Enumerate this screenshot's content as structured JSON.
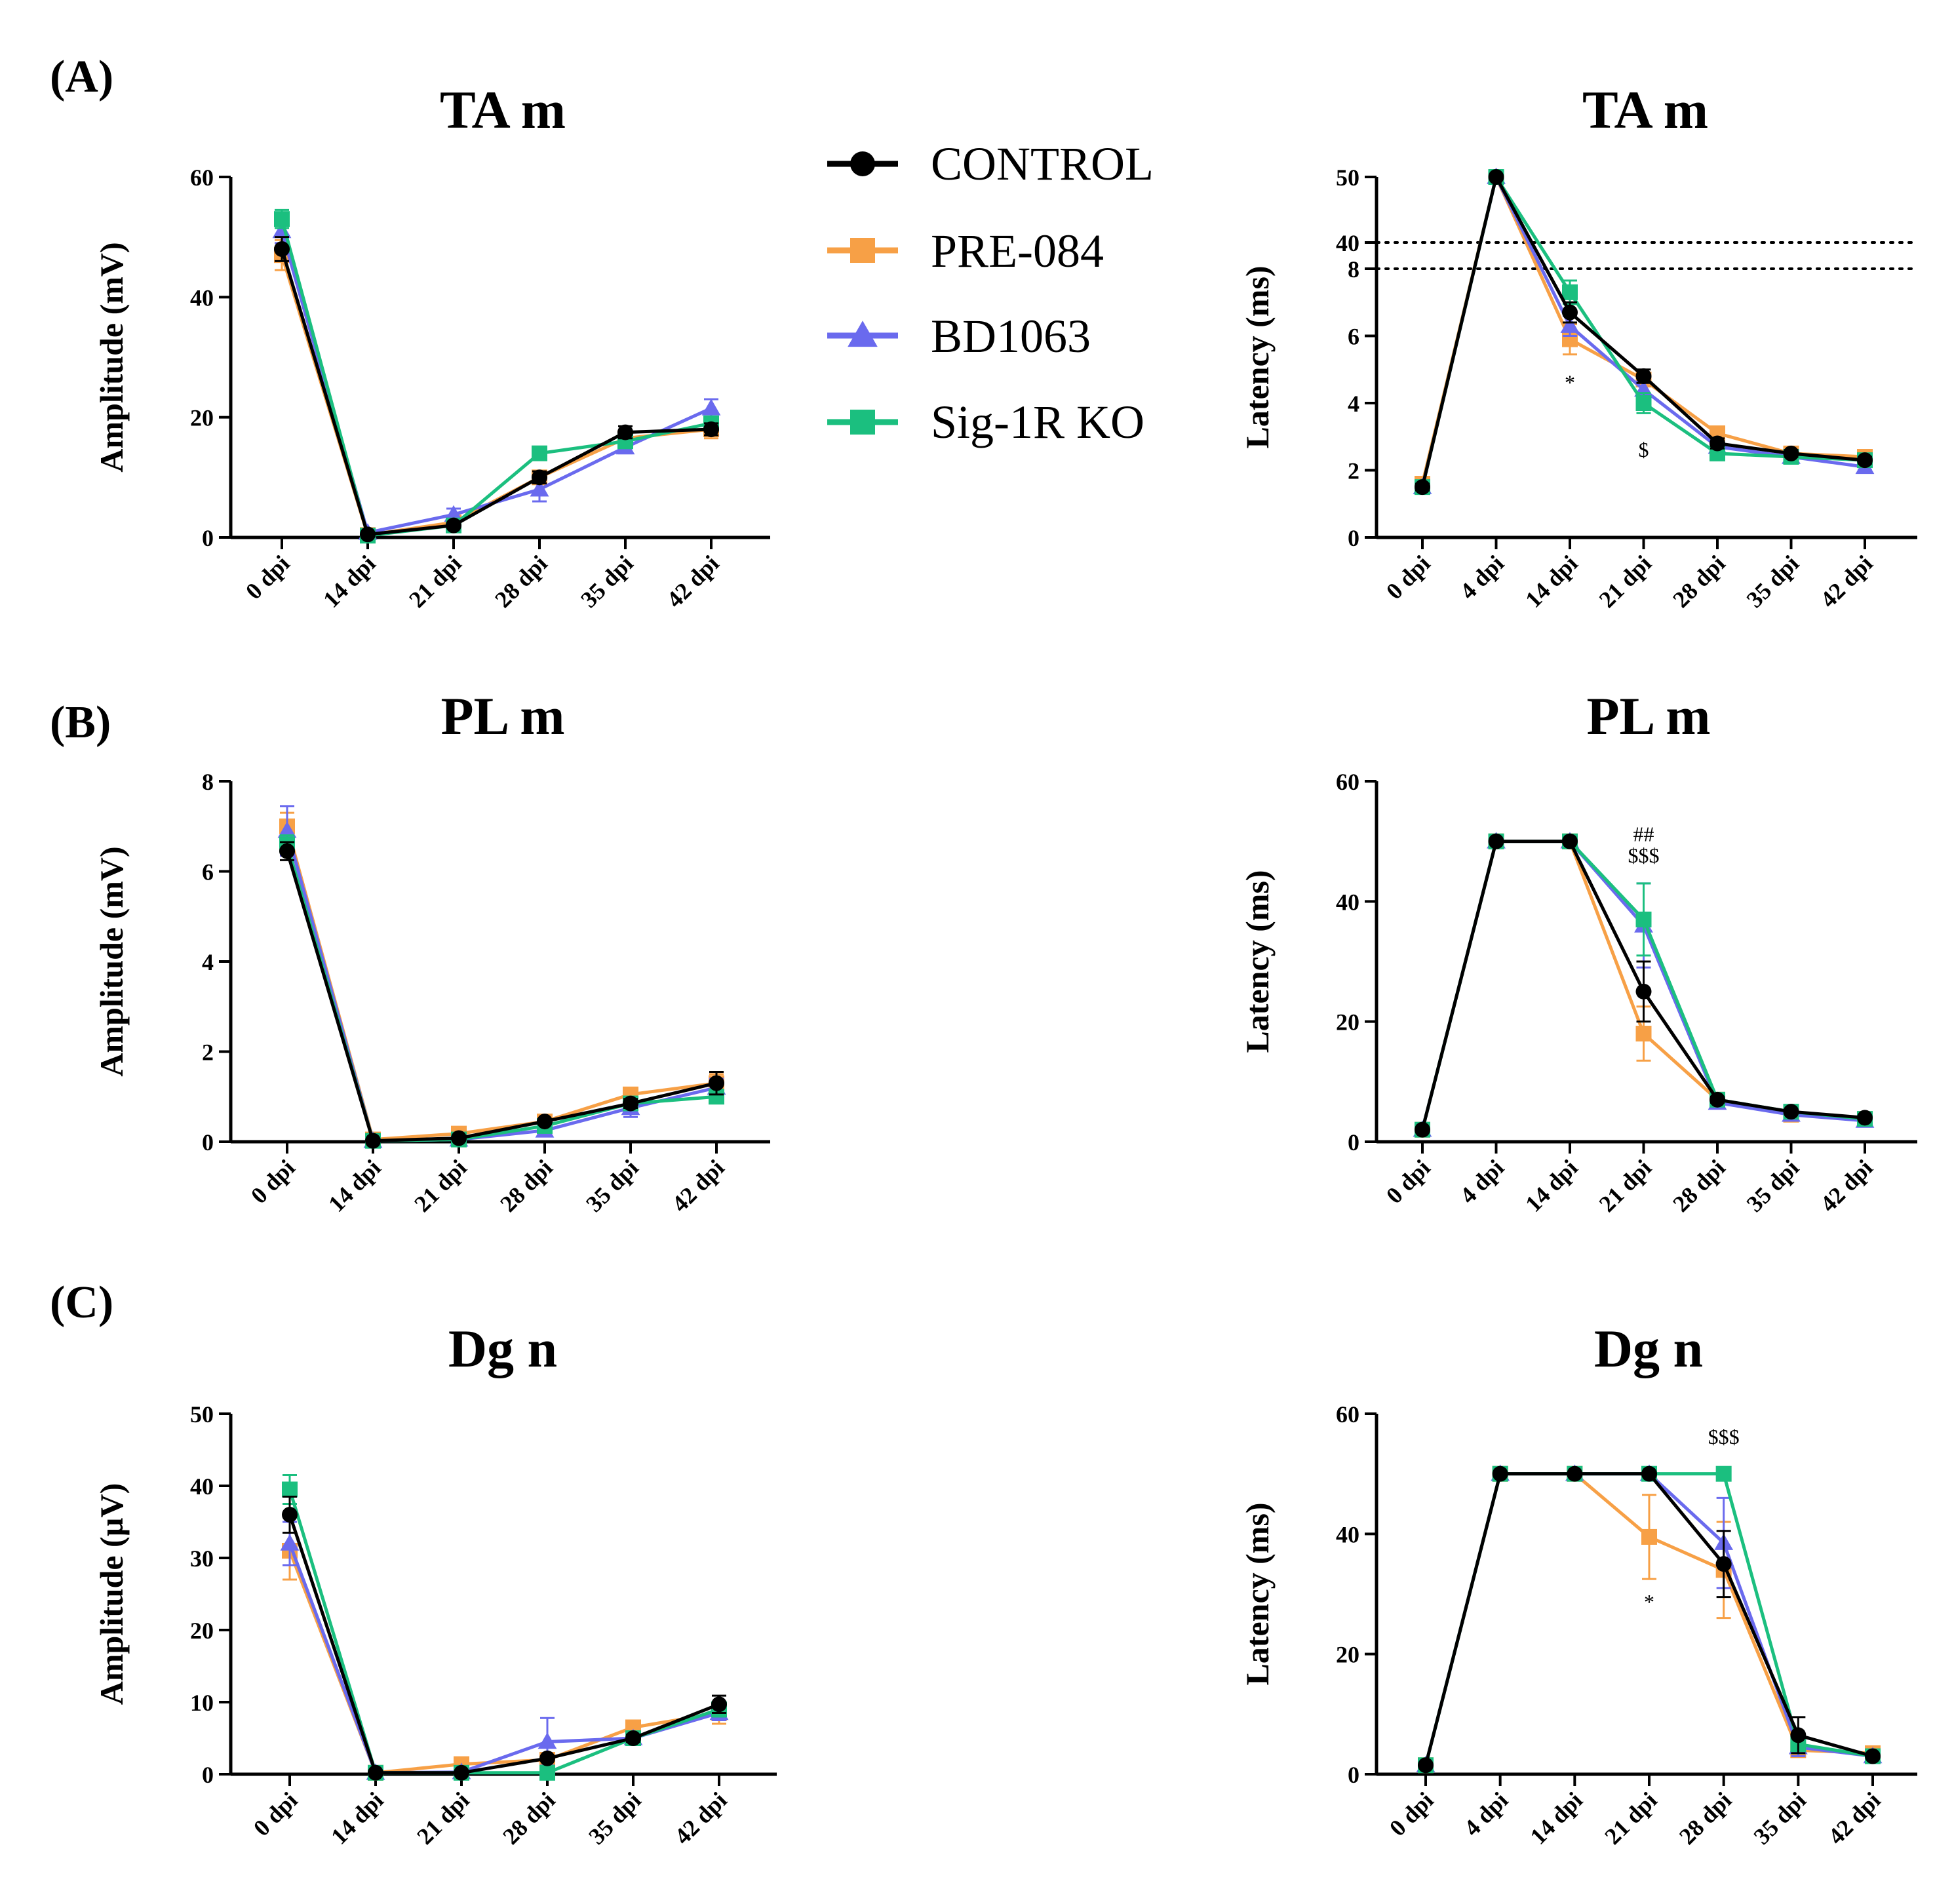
{
  "colors": {
    "CONTROL": "#000000",
    "PRE-084": "#f7a046",
    "BD1063": "#6a6aee",
    "Sig-1R KO": "#1bbf7f",
    "axis": "#000000"
  },
  "legend": [
    {
      "name": "CONTROL",
      "marker": "circle"
    },
    {
      "name": "PRE-084",
      "marker": "square"
    },
    {
      "name": "BD1063",
      "marker": "triangle"
    },
    {
      "name": "Sig-1R KO",
      "marker": "square"
    }
  ],
  "panels": [
    {
      "label": "(A)"
    },
    {
      "label": "(B)"
    },
    {
      "label": "(C)"
    }
  ],
  "chart_data": [
    {
      "id": "ta-amplitude",
      "type": "line",
      "title": "TA m",
      "xlabel": "",
      "ylabel": "Amplitude (mV)",
      "categories": [
        "0 dpi",
        "14 dpi",
        "21 dpi",
        "28 dpi",
        "35 dpi",
        "42 dpi"
      ],
      "ylim": [
        0,
        60
      ],
      "yticks": [
        0,
        20,
        40,
        60
      ],
      "grid": false,
      "series": [
        {
          "name": "PRE-084",
          "values": [
            47,
            0.4,
            2.5,
            10,
            16.5,
            18
          ],
          "err": [
            2.5,
            0,
            0.5,
            1,
            1,
            1.5
          ]
        },
        {
          "name": "BD1063",
          "values": [
            51,
            0.8,
            3.8,
            8,
            15,
            21.5
          ],
          "err": [
            2,
            0.3,
            1,
            2,
            1,
            1.5
          ]
        },
        {
          "name": "Sig-1R KO",
          "values": [
            53,
            0.3,
            2,
            14,
            16,
            19
          ],
          "err": [
            1.5,
            0,
            0.3,
            0.8,
            0.8,
            1
          ]
        },
        {
          "name": "CONTROL",
          "values": [
            48,
            0.5,
            2,
            10,
            17.5,
            18
          ],
          "err": [
            2,
            0,
            0.3,
            1,
            1,
            1
          ]
        }
      ],
      "annotations": []
    },
    {
      "id": "ta-latency",
      "type": "line",
      "title": "TA m",
      "xlabel": "",
      "ylabel": "Latency (ms)",
      "categories": [
        "0 dpi",
        "4 dpi",
        "14 dpi",
        "21 dpi",
        "28 dpi",
        "35 dpi",
        "42 dpi"
      ],
      "broken_axis": {
        "lower": [
          0,
          8
        ],
        "upper": [
          40,
          50
        ]
      },
      "yticks_lower": [
        0,
        2,
        4,
        6,
        8
      ],
      "yticks_upper": [
        40,
        50
      ],
      "grid": false,
      "series": [
        {
          "name": "PRE-084",
          "values": [
            1.6,
            50,
            5.9,
            4.7,
            3.1,
            2.5,
            2.4
          ],
          "err": [
            0.1,
            0,
            0.45,
            0.2,
            0.15,
            0.1,
            0.1
          ]
        },
        {
          "name": "BD1063",
          "values": [
            1.5,
            50,
            6.3,
            4.4,
            2.7,
            2.4,
            2.1
          ],
          "err": [
            0.1,
            0,
            0.3,
            0.25,
            0.1,
            0.1,
            0.1
          ]
        },
        {
          "name": "Sig-1R KO",
          "values": [
            1.5,
            50,
            7.3,
            4.0,
            2.5,
            2.4,
            2.3
          ],
          "err": [
            0.1,
            0,
            0.35,
            0.3,
            0.1,
            0.1,
            0.1
          ]
        },
        {
          "name": "CONTROL",
          "values": [
            1.5,
            50,
            6.7,
            4.8,
            2.8,
            2.5,
            2.3
          ],
          "err": [
            0.1,
            0,
            0.3,
            0.2,
            0.15,
            0.1,
            0.1
          ]
        }
      ],
      "annotations": [
        {
          "text": "*",
          "category": "14 dpi",
          "y": 4.4
        },
        {
          "text": "$",
          "category": "21 dpi",
          "y": 2.4
        }
      ]
    },
    {
      "id": "pl-amplitude",
      "type": "line",
      "title": "PL m",
      "xlabel": "",
      "ylabel": "Amplitude (mV)",
      "categories": [
        "0 dpi",
        "14 dpi",
        "21 dpi",
        "28 dpi",
        "35 dpi",
        "42 dpi"
      ],
      "ylim": [
        0,
        8
      ],
      "yticks": [
        0,
        2,
        4,
        6,
        8
      ],
      "grid": false,
      "series": [
        {
          "name": "PRE-084",
          "values": [
            7.0,
            0.05,
            0.18,
            0.45,
            1.05,
            1.3
          ],
          "err": [
            0.3,
            0,
            0.05,
            0.05,
            0.1,
            0.2
          ]
        },
        {
          "name": "BD1063",
          "values": [
            6.9,
            0.02,
            0.05,
            0.25,
            0.75,
            1.2
          ],
          "err": [
            0.55,
            0,
            0.05,
            0.1,
            0.2,
            0.2
          ]
        },
        {
          "name": "Sig-1R KO",
          "values": [
            6.6,
            0.02,
            0.05,
            0.35,
            0.85,
            1.0
          ],
          "err": [
            0.2,
            0,
            0.03,
            0.05,
            0.1,
            0.1
          ]
        },
        {
          "name": "CONTROL",
          "values": [
            6.45,
            0.02,
            0.08,
            0.45,
            0.85,
            1.3
          ],
          "err": [
            0.2,
            0,
            0.03,
            0.05,
            0.1,
            0.25
          ]
        }
      ],
      "annotations": []
    },
    {
      "id": "pl-latency",
      "type": "line",
      "title": "PL m",
      "xlabel": "",
      "ylabel": "Latency (ms)",
      "categories": [
        "0 dpi",
        "4 dpi",
        "14 dpi",
        "21 dpi",
        "28 dpi",
        "35 dpi",
        "42 dpi"
      ],
      "ylim": [
        0,
        60
      ],
      "yticks": [
        0,
        20,
        40,
        60
      ],
      "grid": false,
      "series": [
        {
          "name": "PRE-084",
          "values": [
            2,
            50,
            50,
            18,
            7,
            4.5,
            3.8
          ],
          "err": [
            0.3,
            0,
            0,
            4.5,
            0.5,
            0.3,
            0.3
          ]
        },
        {
          "name": "BD1063",
          "values": [
            2,
            50,
            50,
            36,
            6.5,
            4.5,
            3.5
          ],
          "err": [
            0.3,
            0,
            0,
            7,
            0.5,
            0.3,
            0.3
          ]
        },
        {
          "name": "Sig-1R KO",
          "values": [
            2,
            50,
            50,
            37,
            7,
            5,
            3.8
          ],
          "err": [
            0.3,
            0,
            0,
            6,
            0.5,
            0.3,
            0.3
          ]
        },
        {
          "name": "CONTROL",
          "values": [
            2,
            50,
            50,
            25,
            7,
            5,
            4
          ],
          "err": [
            0.3,
            0,
            0,
            5,
            0.5,
            0.3,
            0.3
          ]
        }
      ],
      "annotations": [
        {
          "text": "##",
          "category": "21 dpi",
          "y": 50
        },
        {
          "text": "$$$",
          "category": "21 dpi",
          "y": 46.5
        }
      ]
    },
    {
      "id": "dg-amplitude",
      "type": "line",
      "title": "Dg n",
      "xlabel": "",
      "ylabel": "Amplitude (µV)",
      "categories": [
        "0 dpi",
        "14 dpi",
        "21 dpi",
        "28 dpi",
        "35 dpi",
        "42 dpi"
      ],
      "ylim": [
        0,
        50
      ],
      "yticks": [
        0,
        10,
        20,
        30,
        40,
        50
      ],
      "grid": false,
      "series": [
        {
          "name": "PRE-084",
          "values": [
            31,
            0.2,
            1.4,
            2,
            6.5,
            8.5
          ],
          "err": [
            4,
            0,
            0.3,
            0.3,
            0.5,
            1.5
          ]
        },
        {
          "name": "BD1063",
          "values": [
            32,
            0.2,
            0.3,
            4.5,
            5,
            8.5
          ],
          "err": [
            3,
            0,
            0.2,
            3.3,
            0.5,
            1
          ]
        },
        {
          "name": "Sig-1R KO",
          "values": [
            39.5,
            0.2,
            0.2,
            0.2,
            5,
            9
          ],
          "err": [
            2,
            0,
            0.1,
            0.1,
            0.5,
            1
          ]
        },
        {
          "name": "CONTROL",
          "values": [
            36,
            0.2,
            0.2,
            2.2,
            5,
            9.7
          ],
          "err": [
            2.5,
            0,
            0.1,
            0.3,
            0.5,
            1.2
          ]
        }
      ],
      "annotations": []
    },
    {
      "id": "dg-latency",
      "type": "line",
      "title": "Dg n",
      "xlabel": "",
      "ylabel": "Latency (ms)",
      "categories": [
        "0 dpi",
        "4 dpi",
        "14 dpi",
        "21 dpi",
        "28 dpi",
        "35 dpi",
        "42 dpi"
      ],
      "ylim": [
        0,
        60
      ],
      "yticks": [
        0,
        20,
        40,
        60
      ],
      "grid": false,
      "series": [
        {
          "name": "PRE-084",
          "values": [
            1.5,
            50,
            50,
            39.5,
            34,
            4,
            3.5
          ],
          "err": [
            0.2,
            0,
            0,
            7,
            8,
            1,
            0.3
          ]
        },
        {
          "name": "BD1063",
          "values": [
            1.5,
            50,
            50,
            50,
            38.5,
            4.5,
            3
          ],
          "err": [
            0.2,
            0,
            0,
            0,
            7.5,
            1.5,
            0.3
          ]
        },
        {
          "name": "Sig-1R KO",
          "values": [
            1.5,
            50,
            50,
            50,
            50,
            5,
            3
          ],
          "err": [
            0.2,
            0,
            0,
            0,
            0,
            1,
            0.3
          ]
        },
        {
          "name": "CONTROL",
          "values": [
            1.5,
            50,
            50,
            50,
            35,
            6.5,
            3
          ],
          "err": [
            0.2,
            0,
            0,
            0,
            5.5,
            3,
            0.3
          ]
        }
      ],
      "annotations": [
        {
          "text": "*",
          "category": "21 dpi",
          "y": 27.5
        },
        {
          "text": "$$$",
          "category": "28 dpi",
          "y": 55
        }
      ]
    }
  ]
}
